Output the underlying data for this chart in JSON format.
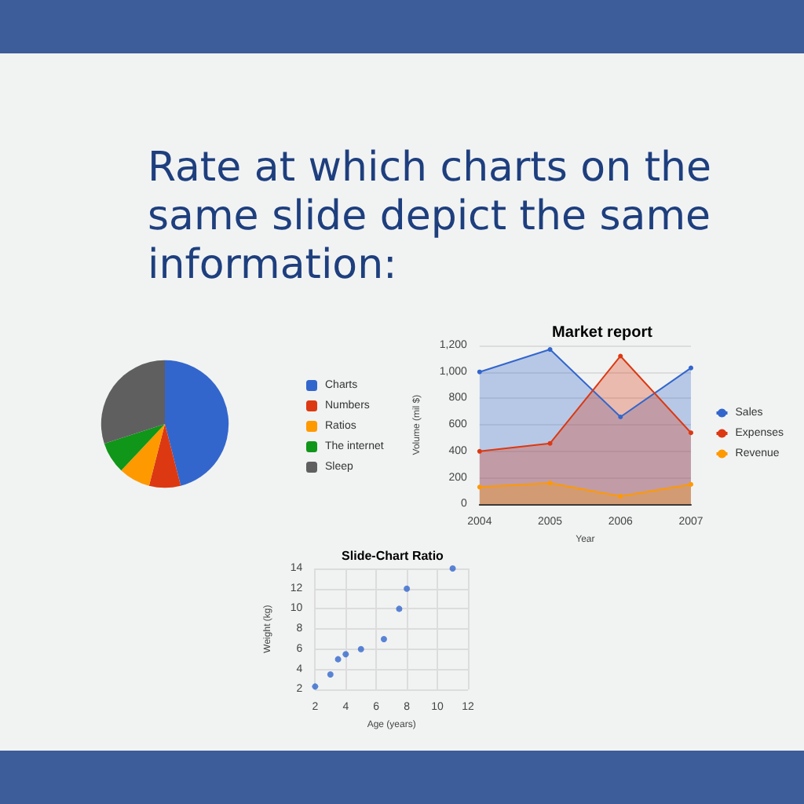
{
  "chart_data": [
    {
      "type": "pie",
      "title": "Rate at which charts on the same slide depict the same information:",
      "categories": [
        "Charts",
        "Numbers",
        "Ratios",
        "The internet",
        "Sleep"
      ],
      "values": [
        46,
        8,
        8,
        8,
        30
      ],
      "colors": [
        "#3366cc",
        "#dc3912",
        "#ff9900",
        "#109618",
        "#5f5f5f"
      ],
      "legend": "right"
    },
    {
      "type": "area",
      "title": "Market report",
      "xlabel": "Year",
      "ylabel": "Volume (mil $)",
      "categories": [
        "2004",
        "2005",
        "2006",
        "2007"
      ],
      "series": [
        {
          "name": "Sales",
          "color": "#3366cc",
          "values": [
            1000,
            1170,
            660,
            1030
          ]
        },
        {
          "name": "Expenses",
          "color": "#dc3912",
          "values": [
            400,
            460,
            1120,
            540
          ]
        },
        {
          "name": "Revenue",
          "color": "#ff9900",
          "values": [
            130,
            160,
            60,
            150
          ]
        }
      ],
      "ylim": [
        0,
        1200
      ],
      "yticks": [
        0,
        200,
        400,
        600,
        800,
        {
          "value": 1000,
          "label": "1,000"
        },
        {
          "value": 1200,
          "label": "1,200"
        }
      ],
      "grid": "y",
      "legend": "right",
      "marker": "circle"
    },
    {
      "type": "scatter",
      "title": "Slide-Chart Ratio",
      "xlabel": "Age (years)",
      "ylabel": "Weight (kg)",
      "x": [
        2,
        3,
        3.5,
        4,
        5,
        6.5,
        7.5,
        8,
        11
      ],
      "series": [
        {
          "color": "#3366cc",
          "values": [
            2.3,
            3.5,
            5,
            5.5,
            6,
            7,
            10,
            12,
            14
          ]
        }
      ],
      "xlim": [
        2,
        12
      ],
      "xticks": [
        2,
        4,
        6,
        8,
        10,
        12
      ],
      "ylim": [
        2,
        14
      ],
      "yticks": [
        2,
        4,
        6,
        8,
        10,
        12,
        14
      ],
      "grid": true,
      "marker": "circle"
    }
  ]
}
